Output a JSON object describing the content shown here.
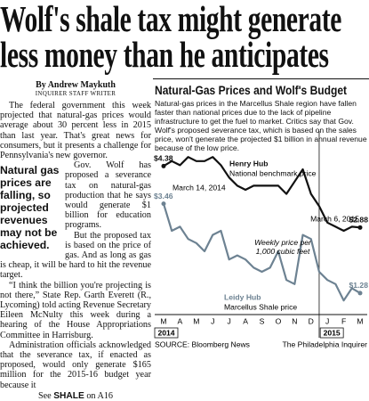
{
  "headline": [
    "Wolf's shale tax might generate",
    "less money than he anticipates"
  ],
  "byline": "By Andrew Maykuth",
  "staff": "INQUIRER STAFF WRITER",
  "pull_quote": "Natural gas prices are falling, so projected revenues may not be achieved.",
  "paragraphs": [
    "The federal government this week projected that natural-gas prices would average about 30 percent less in 2015 than last year. That's great news for consumers, but it presents a challenge for Pennsylvania's new governor.",
    "Gov. Wolf has proposed a severance tax on natural-gas production that he says would generate $1 billion for education programs.",
    "But the proposed tax is based on the price of gas. And as long as gas is cheap, it will be hard to hit the revenue target.",
    "“I think the billion you're projecting is not there,” State Rep. Garth Everett (R., Lycoming) told acting Revenue Secretary Eileen McNulty this week during a hearing of the House Appropriations Committee in Harrisburg.",
    "Administration officials acknowledged that the severance tax, if enacted as proposed, would only generate $165 million for the 2015-16 budget year because it"
  ],
  "jump": {
    "see": "See",
    "label": "SHALE",
    "page": "on A16"
  },
  "chart_data": {
    "type": "line",
    "title": "Natural-Gas Prices and Wolf's Budget",
    "subtitle": "Natural-gas prices in the Marcellus Shale region have fallen faster than national prices due to the lack of pipeline infrastructure to get the fuel to market. Critics say that Gov. Wolf's proposed severance tax, which is based on the sales price, won't generate the projected $1 billion in annual revenue because of the low price.",
    "categories": [
      "M",
      null,
      "A",
      null,
      "M",
      null,
      "J",
      null,
      "J",
      null,
      "A",
      null,
      "S",
      null,
      "O",
      null,
      "N",
      null,
      "D",
      null,
      "J",
      null,
      "F",
      null,
      "M"
    ],
    "year_labels": [
      "2014",
      "2015"
    ],
    "annotations": [
      "March 14, 2014",
      "March 6, 2015",
      "Weekly price per 1,000 cubic feet"
    ],
    "ylim": [
      0.8,
      4.8
    ],
    "series": [
      {
        "name": "Henry Hub",
        "description": "National benchmark price",
        "color": "#111111",
        "values": [
          4.38,
          4.5,
          4.4,
          4.6,
          4.5,
          4.5,
          4.6,
          4.4,
          4.1,
          3.9,
          3.8,
          3.9,
          3.9,
          3.9,
          3.9,
          3.7,
          4.0,
          4.3,
          3.7,
          3.4,
          3.0,
          2.9,
          2.8,
          2.9,
          2.88
        ],
        "value_labels": [
          "$4.38",
          null,
          null,
          null,
          null,
          null,
          null,
          null,
          null,
          null,
          null,
          null,
          null,
          null,
          null,
          null,
          null,
          null,
          null,
          null,
          null,
          null,
          null,
          null,
          "$2.88"
        ]
      },
      {
        "name": "Leidy Hub",
        "description": "Marcellus Shale price",
        "color": "#6d8292",
        "values": [
          3.46,
          2.8,
          2.9,
          2.6,
          2.5,
          2.3,
          2.7,
          2.8,
          2.1,
          2.2,
          2.1,
          1.9,
          1.8,
          1.9,
          2.3,
          1.6,
          1.5,
          2.7,
          2.6,
          1.8,
          1.6,
          1.5,
          1.1,
          1.4,
          1.28
        ],
        "value_labels": [
          "$3.46",
          null,
          null,
          null,
          null,
          null,
          null,
          null,
          null,
          null,
          null,
          null,
          null,
          null,
          null,
          null,
          null,
          null,
          null,
          null,
          null,
          null,
          null,
          null,
          "$1.28"
        ]
      }
    ],
    "source": "SOURCE: Bloomberg News",
    "credit": "The Philadelphia Inquirer"
  }
}
